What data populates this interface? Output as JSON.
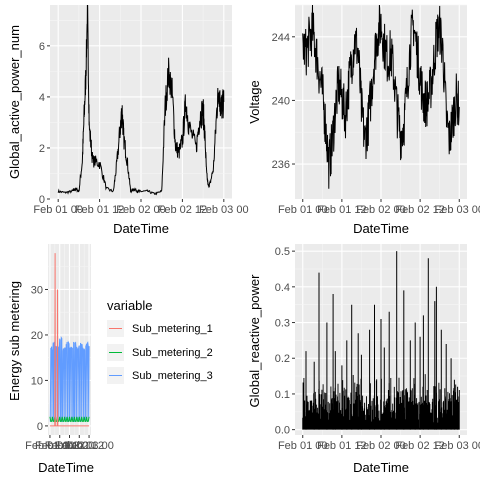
{
  "colors": {
    "panel_bg": "#EBEBEB",
    "grid_major": "#FFFFFF",
    "grid_minor": "#F5F5F5",
    "line": "#000000",
    "tick_text": "#4D4D4D",
    "sub1": "#F8766D",
    "sub2": "#00BA38",
    "sub3": "#619CFF",
    "legend_key_bg": "#F2F2F2"
  },
  "chart_data": [
    {
      "type": "line",
      "xlabel": "DateTime",
      "ylabel": "Global_active_power_num",
      "xticks": [
        "Feb 01 00",
        "Feb 01 12",
        "Feb 02 00",
        "Feb 02 12",
        "Feb 03 00"
      ],
      "xlim": [
        "Feb 01 00",
        "Feb 03 00"
      ],
      "yticks": [
        "0",
        "2",
        "4",
        "6"
      ],
      "ylim": [
        0,
        7.6
      ],
      "x_hours": [
        0,
        2,
        4,
        5,
        6,
        7,
        7.5,
        8,
        8.5,
        9,
        10,
        12,
        14,
        16,
        17,
        18,
        18.5,
        19,
        20,
        21,
        22,
        23,
        24,
        26,
        28,
        30,
        31,
        32,
        33,
        34,
        35,
        36,
        37,
        38,
        40,
        41,
        42,
        42.5,
        43,
        43.5,
        44,
        45,
        46,
        46.5,
        47,
        47.5,
        48
      ],
      "y": [
        0.3,
        0.25,
        0.3,
        0.4,
        0.3,
        1.5,
        3.2,
        4.8,
        7.4,
        2.8,
        1.5,
        1.4,
        0.4,
        0.3,
        1.4,
        2.8,
        3.5,
        2.4,
        1.5,
        0.3,
        0.4,
        0.3,
        0.3,
        0.3,
        0.2,
        0.3,
        3.6,
        5.0,
        4.2,
        2.1,
        1.8,
        2.3,
        3.8,
        2.8,
        2.0,
        3.2,
        3.5,
        2.5,
        1.0,
        0.5,
        0.6,
        1.2,
        3.5,
        4.3,
        3.7,
        3.6,
        3.8
      ]
    },
    {
      "type": "line",
      "xlabel": "DateTime",
      "ylabel": "Voltage",
      "xticks": [
        "Feb 01 00",
        "Feb 01 12",
        "Feb 02 00",
        "Feb 02 12",
        "Feb 03 00"
      ],
      "xlim": [
        "Feb 01 00",
        "Feb 03 00"
      ],
      "yticks": [
        "236",
        "240",
        "244"
      ],
      "ylim": [
        233.8,
        246
      ],
      "x_hours": [
        0,
        1,
        2,
        3,
        4,
        5,
        6,
        7,
        8,
        9,
        10,
        11,
        12,
        13,
        14,
        15,
        16,
        17,
        18,
        19,
        20,
        21,
        22,
        23,
        24,
        25,
        26,
        27,
        28,
        29,
        30,
        31,
        32,
        33,
        34,
        35,
        36,
        37,
        38,
        39,
        40,
        41,
        42,
        43,
        44,
        45,
        46,
        47,
        48
      ],
      "y": [
        243.5,
        243.0,
        243.8,
        244.5,
        243.2,
        241.8,
        240.5,
        238.5,
        236.0,
        237.2,
        239.5,
        241.0,
        240.2,
        239.0,
        240.8,
        242.5,
        243.8,
        243.0,
        239.5,
        237.5,
        238.5,
        240.5,
        242.8,
        244.2,
        244.8,
        243.5,
        242.5,
        243.0,
        241.5,
        239.2,
        237.8,
        238.5,
        240.8,
        243.5,
        244.8,
        243.2,
        241.5,
        240.0,
        239.8,
        240.5,
        242.0,
        244.0,
        244.5,
        243.0,
        239.0,
        237.5,
        238.8,
        240.2,
        239.6
      ],
      "noise": 1.6
    },
    {
      "type": "line",
      "xlabel": "DateTime",
      "ylabel": "Energy sub metering",
      "xticks": [
        "Feb 01 00",
        "Feb 01 12",
        "Feb 02 00",
        "Feb 02 12",
        "Feb 03 00"
      ],
      "xlim": [
        "Feb 01 00",
        "Feb 03 00"
      ],
      "yticks": [
        "0",
        "10",
        "20",
        "30"
      ],
      "ylim": [
        -2,
        40
      ],
      "legend_title": "variable",
      "legend_placement": "right",
      "series": [
        {
          "name": "Sub_metering_1",
          "x_hours": [
            0,
            6,
            6.3,
            6.6,
            9,
            9.3,
            9.6,
            48
          ],
          "y": [
            0,
            0,
            38,
            0,
            0,
            30,
            0,
            0
          ]
        },
        {
          "name": "Sub_metering_2",
          "x_hours": [
            0,
            48
          ],
          "y": [
            1,
            1
          ]
        },
        {
          "name": "Sub_metering_3",
          "x_hours": [
            0,
            3,
            4,
            16,
            17,
            24,
            26,
            36,
            37,
            40,
            41,
            48
          ],
          "y": [
            17,
            18,
            17,
            19,
            17,
            18,
            17,
            18,
            17,
            18,
            17,
            18
          ]
        }
      ]
    },
    {
      "type": "line",
      "xlabel": "DateTime",
      "ylabel": "Global_reactive_power",
      "xticks": [
        "Feb 01 00",
        "Feb 01 12",
        "Feb 02 00",
        "Feb 02 12",
        "Feb 03 00"
      ],
      "xlim": [
        "Feb 01 00",
        "Feb 03 00"
      ],
      "yticks": [
        "0.0",
        "0.1",
        "0.2",
        "0.3",
        "0.4",
        "0.5"
      ],
      "ylim": [
        -0.015,
        0.52
      ],
      "spikes_hours": [
        1,
        3.5,
        5,
        7.4,
        9.3,
        10,
        12,
        13.5,
        15,
        17,
        18,
        20.5,
        22,
        24,
        25,
        26.5,
        28.8,
        31,
        33,
        34.5,
        36,
        37,
        38.5,
        40.5,
        41,
        42.5,
        44,
        45.5,
        46.5,
        47.5
      ],
      "spikes_y": [
        0.22,
        0.19,
        0.44,
        0.3,
        0.38,
        0.22,
        0.18,
        0.25,
        0.35,
        0.27,
        0.21,
        0.28,
        0.35,
        0.31,
        0.23,
        0.33,
        0.5,
        0.39,
        0.25,
        0.3,
        0.26,
        0.32,
        0.48,
        0.36,
        0.4,
        0.28,
        0.24,
        0.2,
        0.14,
        0.12
      ],
      "base_max": 0.16
    }
  ]
}
